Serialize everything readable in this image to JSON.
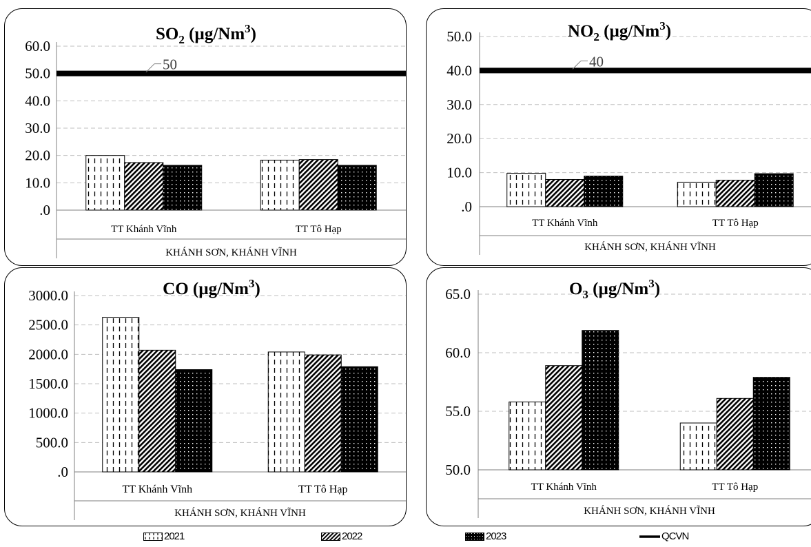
{
  "colors": {
    "axis": "#7f7f7f",
    "grid": "#bfbfbf",
    "bar_edge": "#000000",
    "limit_line": "#000000",
    "text": "#000000"
  },
  "legend": [
    {
      "label": "2021",
      "pattern": "dash",
      "icon": "vertical-dash-pattern"
    },
    {
      "label": "2022",
      "pattern": "diag",
      "icon": "diagonal-hatch-pattern"
    },
    {
      "label": "2023",
      "pattern": "dots",
      "icon": "dark-dotted-pattern"
    },
    {
      "label": "QCVN",
      "pattern": "line",
      "icon": "thick-line"
    }
  ],
  "chart_data": [
    {
      "type": "bar",
      "title_main": "SO",
      "title_sub": "2",
      "title_unit": " (µg/Nm",
      "title_sup": "3",
      "title_close": ")",
      "categories": [
        "TT Khánh Vĩnh",
        "TT Tô Hạp"
      ],
      "group_label": "KHÁNH SƠN, KHÁNH VĨNH",
      "ylim": [
        0,
        60
      ],
      "yticks": [
        ".0",
        "10.0",
        "20.0",
        "30.0",
        "40.0",
        "50.0",
        "60.0"
      ],
      "ytick_values": [
        0,
        10,
        20,
        30,
        40,
        50,
        60
      ],
      "series": [
        {
          "name": "2021",
          "values": [
            20.0,
            18.3
          ]
        },
        {
          "name": "2022",
          "values": [
            17.4,
            18.5
          ]
        },
        {
          "name": "2023",
          "values": [
            16.4,
            16.4
          ]
        }
      ],
      "limit": {
        "name": "QCVN",
        "value": 50,
        "label": "50"
      }
    },
    {
      "type": "bar",
      "title_main": "NO",
      "title_sub": "2",
      "title_unit": " (µg/Nm",
      "title_sup": "3",
      "title_close": ")",
      "categories": [
        "TT Khánh Vĩnh",
        "TT Tô Hạp"
      ],
      "group_label": "KHÁNH SƠN, KHÁNH VĨNH",
      "ylim": [
        0,
        50
      ],
      "yticks": [
        ".0",
        "10.0",
        "20.0",
        "30.0",
        "40.0",
        "50.0"
      ],
      "ytick_values": [
        0,
        10,
        20,
        30,
        40,
        50
      ],
      "series": [
        {
          "name": "2021",
          "values": [
            9.8,
            7.2
          ]
        },
        {
          "name": "2022",
          "values": [
            8.0,
            7.8
          ]
        },
        {
          "name": "2023",
          "values": [
            9.0,
            9.7
          ]
        }
      ],
      "limit": {
        "name": "QCVN",
        "value": 40,
        "label": "40"
      }
    },
    {
      "type": "bar",
      "title_main": "CO",
      "title_sub": "",
      "title_unit": " (µg/Nm",
      "title_sup": "3",
      "title_close": ")",
      "categories": [
        "TT Khánh Vĩnh",
        "TT Tô Hạp"
      ],
      "group_label": "KHÁNH SƠN, KHÁNH VĨNH",
      "ylim": [
        0,
        3000
      ],
      "yticks": [
        ".0",
        "500.0",
        "1000.0",
        "1500.0",
        "2000.0",
        "2500.0",
        "3000.0"
      ],
      "ytick_values": [
        0,
        500,
        1000,
        1500,
        2000,
        2500,
        3000
      ],
      "series": [
        {
          "name": "2021",
          "values": [
            2630,
            2040
          ]
        },
        {
          "name": "2022",
          "values": [
            2070,
            1990
          ]
        },
        {
          "name": "2023",
          "values": [
            1740,
            1790
          ]
        }
      ]
    },
    {
      "type": "bar",
      "title_main": "O",
      "title_sub": "3",
      "title_unit": " (µg/Nm",
      "title_sup": "3",
      "title_close": ")",
      "categories": [
        "TT Khánh Vĩnh",
        "TT Tô Hạp"
      ],
      "group_label": "KHÁNH SƠN, KHÁNH VĨNH",
      "ylim": [
        50,
        65
      ],
      "yticks": [
        "50.0",
        "55.0",
        "60.0",
        "65.0"
      ],
      "ytick_values": [
        50,
        55,
        60,
        65
      ],
      "series": [
        {
          "name": "2021",
          "values": [
            55.8,
            54.0
          ]
        },
        {
          "name": "2022",
          "values": [
            58.9,
            56.1
          ]
        },
        {
          "name": "2023",
          "values": [
            61.9,
            57.9
          ]
        }
      ]
    }
  ]
}
